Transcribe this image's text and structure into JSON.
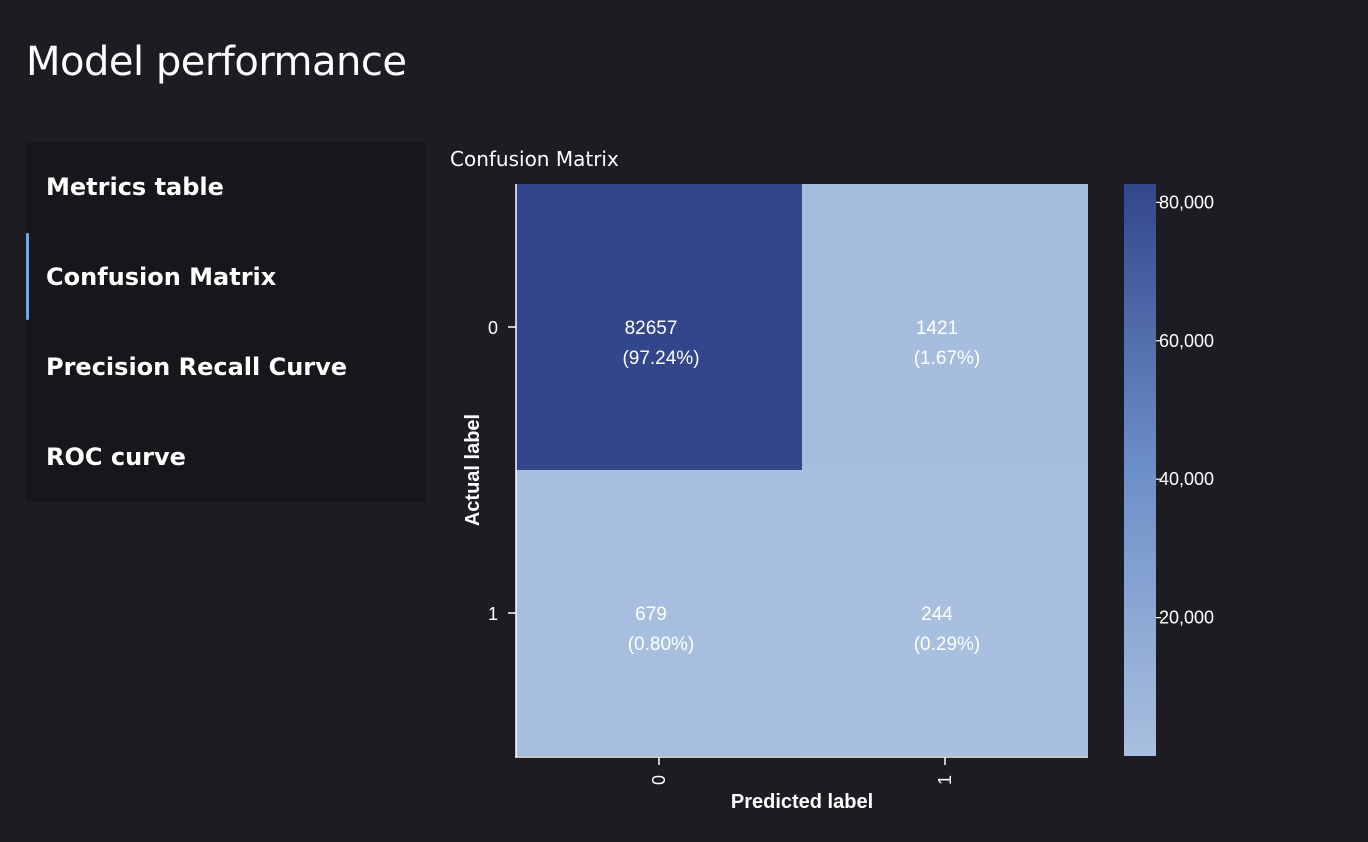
{
  "page": {
    "title": "Model performance"
  },
  "nav": {
    "active_index": 1,
    "accent_color": "#6aa9ee",
    "items": [
      {
        "label": "Metrics table"
      },
      {
        "label": "Confusion Matrix"
      },
      {
        "label": "Precision Recall Curve"
      },
      {
        "label": "ROC curve"
      }
    ]
  },
  "section": {
    "title": "Confusion Matrix"
  },
  "chart_data": {
    "type": "heatmap",
    "title": "",
    "xlabel": "Predicted label",
    "ylabel": "Actual label",
    "x_categories": [
      "0",
      "1"
    ],
    "y_categories": [
      "0",
      "1"
    ],
    "cells": [
      {
        "actual": "0",
        "predicted": "0",
        "count": 82657,
        "count_label": "82657",
        "percent_label": "(97.24%)"
      },
      {
        "actual": "0",
        "predicted": "1",
        "count": 1421,
        "count_label": "1421",
        "percent_label": "(1.67%)"
      },
      {
        "actual": "1",
        "predicted": "0",
        "count": 679,
        "count_label": "679",
        "percent_label": "(0.80%)"
      },
      {
        "actual": "1",
        "predicted": "1",
        "count": 244,
        "count_label": "244",
        "percent_label": "(0.29%)"
      }
    ],
    "colorbar": {
      "min": 0,
      "max": 82657,
      "ticks": [
        20000,
        40000,
        60000,
        80000
      ],
      "tick_labels": [
        "20,000",
        "40,000",
        "60,000",
        "80,000"
      ],
      "color_low": "#a9bfdf",
      "color_mid": "#6d8fc8",
      "color_high": "#33468c"
    },
    "grid": false,
    "legend": "right"
  }
}
